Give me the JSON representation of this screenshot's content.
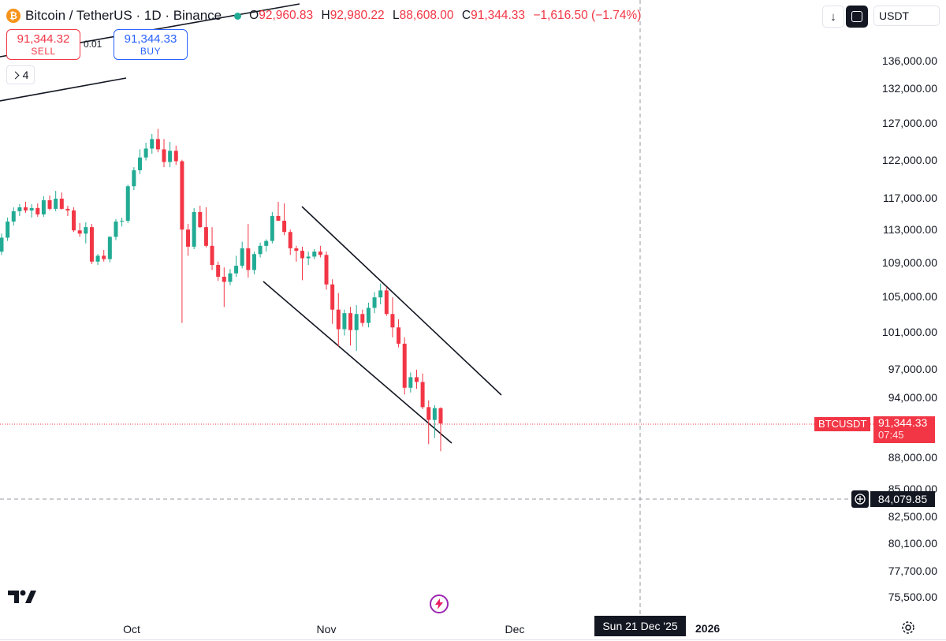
{
  "header": {
    "symbol": "Bitcoin / TetherUS · 1D · Binance",
    "coin_icon": "bitcoin-icon",
    "o_label": "O",
    "o_value": "92,960.83",
    "h_label": "H",
    "h_value": "92,980.22",
    "l_label": "L",
    "l_value": "88,608.00",
    "c_label": "C",
    "c_value": "91,344.33",
    "change": "−1,616.50 (−1.74%)"
  },
  "trade": {
    "sell_price": "91,344.32",
    "sell_label": "SELL",
    "spread": "0.01",
    "buy_price": "91,344.33",
    "buy_label": "BUY"
  },
  "indicator_count": "4",
  "toolbar": {
    "download_icon": "arrow-down-icon",
    "fullscreen_icon": "fullscreen-icon",
    "currency": "USDT"
  },
  "y_axis": {
    "ticks": [
      "136,000.00",
      "132,000.00",
      "127,000.00",
      "122,000.00",
      "117,000.00",
      "113,000.00",
      "109,000.00",
      "105,000.00",
      "101,000.00",
      "97,000.00",
      "94,000.00",
      "88,000.00",
      "85,000.00",
      "82,500.00",
      "80,100.00",
      "77,700.00",
      "75,500.00"
    ]
  },
  "x_axis": {
    "ticks": [
      "Oct",
      "Nov",
      "Dec"
    ],
    "year": "2026",
    "crosshair_date": "Sun 21 Dec '25"
  },
  "price_line": {
    "symbol": "BTCUSDT",
    "price": "91,344.33",
    "countdown": "07:45"
  },
  "crosshair": {
    "price": "84,079.85"
  },
  "colors": {
    "up": "#22ab94",
    "down": "#f23645",
    "line": "#131722"
  },
  "chart_data": {
    "type": "candlestick",
    "log_scale": true,
    "last_price": 91344.33,
    "crosshair_price": 84079.85,
    "candles": [
      {
        "o": 110300,
        "h": 112500,
        "l": 109900,
        "c": 112000
      },
      {
        "o": 112000,
        "h": 114500,
        "l": 111600,
        "c": 114000
      },
      {
        "o": 114000,
        "h": 115800,
        "l": 113500,
        "c": 115300
      },
      {
        "o": 115300,
        "h": 116200,
        "l": 114700,
        "c": 115800
      },
      {
        "o": 115800,
        "h": 116500,
        "l": 115100,
        "c": 115400
      },
      {
        "o": 115400,
        "h": 116200,
        "l": 114500,
        "c": 115700
      },
      {
        "o": 115700,
        "h": 116300,
        "l": 114600,
        "c": 114900
      },
      {
        "o": 114900,
        "h": 117200,
        "l": 114600,
        "c": 116700
      },
      {
        "o": 116700,
        "h": 117300,
        "l": 115400,
        "c": 115600
      },
      {
        "o": 115600,
        "h": 117900,
        "l": 115300,
        "c": 116900
      },
      {
        "o": 116900,
        "h": 117700,
        "l": 115500,
        "c": 115600
      },
      {
        "o": 115600,
        "h": 116000,
        "l": 114700,
        "c": 115400
      },
      {
        "o": 115400,
        "h": 115800,
        "l": 112700,
        "c": 112900
      },
      {
        "o": 112900,
        "h": 113800,
        "l": 112100,
        "c": 112500
      },
      {
        "o": 112500,
        "h": 113900,
        "l": 111300,
        "c": 113300
      },
      {
        "o": 113300,
        "h": 113700,
        "l": 108800,
        "c": 109100
      },
      {
        "o": 109100,
        "h": 110000,
        "l": 108700,
        "c": 109800
      },
      {
        "o": 109800,
        "h": 110500,
        "l": 109100,
        "c": 109400
      },
      {
        "o": 109400,
        "h": 112200,
        "l": 109000,
        "c": 112100
      },
      {
        "o": 112100,
        "h": 114300,
        "l": 111700,
        "c": 114000
      },
      {
        "o": 114000,
        "h": 114500,
        "l": 113400,
        "c": 114100
      },
      {
        "o": 114100,
        "h": 118700,
        "l": 113800,
        "c": 118500
      },
      {
        "o": 118500,
        "h": 121000,
        "l": 118000,
        "c": 120600
      },
      {
        "o": 120600,
        "h": 123400,
        "l": 120100,
        "c": 122300
      },
      {
        "o": 122300,
        "h": 124300,
        "l": 121900,
        "c": 123500
      },
      {
        "o": 123500,
        "h": 125500,
        "l": 122800,
        "c": 124800
      },
      {
        "o": 124800,
        "h": 126200,
        "l": 123000,
        "c": 123400
      },
      {
        "o": 123400,
        "h": 124800,
        "l": 121000,
        "c": 121700
      },
      {
        "o": 121700,
        "h": 124400,
        "l": 121000,
        "c": 123200
      },
      {
        "o": 123200,
        "h": 123900,
        "l": 121300,
        "c": 121800
      },
      {
        "o": 121800,
        "h": 122000,
        "l": 102000,
        "c": 113000
      },
      {
        "o": 113000,
        "h": 113700,
        "l": 109800,
        "c": 110900
      },
      {
        "o": 110900,
        "h": 115700,
        "l": 110600,
        "c": 115200
      },
      {
        "o": 115200,
        "h": 116000,
        "l": 113200,
        "c": 113300
      },
      {
        "o": 113300,
        "h": 115800,
        "l": 110800,
        "c": 111000
      },
      {
        "o": 111000,
        "h": 113300,
        "l": 108100,
        "c": 108700
      },
      {
        "o": 108700,
        "h": 109100,
        "l": 106800,
        "c": 107300
      },
      {
        "o": 107300,
        "h": 108400,
        "l": 103800,
        "c": 106700
      },
      {
        "o": 106700,
        "h": 108200,
        "l": 106300,
        "c": 107700
      },
      {
        "o": 107700,
        "h": 109800,
        "l": 107300,
        "c": 108600
      },
      {
        "o": 108600,
        "h": 111500,
        "l": 108300,
        "c": 110700
      },
      {
        "o": 110700,
        "h": 113700,
        "l": 107200,
        "c": 108100
      },
      {
        "o": 108100,
        "h": 110300,
        "l": 107600,
        "c": 110000
      },
      {
        "o": 110000,
        "h": 111400,
        "l": 109600,
        "c": 111000
      },
      {
        "o": 111000,
        "h": 111800,
        "l": 110300,
        "c": 111600
      },
      {
        "o": 111600,
        "h": 115200,
        "l": 111300,
        "c": 114700
      },
      {
        "o": 114700,
        "h": 116500,
        "l": 114300,
        "c": 114100
      },
      {
        "o": 114100,
        "h": 116300,
        "l": 112300,
        "c": 112700
      },
      {
        "o": 112700,
        "h": 113000,
        "l": 109900,
        "c": 110700
      },
      {
        "o": 110700,
        "h": 111000,
        "l": 109100,
        "c": 110400
      },
      {
        "o": 110400,
        "h": 110900,
        "l": 106900,
        "c": 109500
      },
      {
        "o": 109500,
        "h": 110300,
        "l": 108700,
        "c": 109700
      },
      {
        "o": 109700,
        "h": 110600,
        "l": 109400,
        "c": 110300
      },
      {
        "o": 110300,
        "h": 111000,
        "l": 109600,
        "c": 109900
      },
      {
        "o": 109900,
        "h": 110300,
        "l": 105800,
        "c": 106400
      },
      {
        "o": 106400,
        "h": 107000,
        "l": 101900,
        "c": 103500
      },
      {
        "o": 103500,
        "h": 105400,
        "l": 99400,
        "c": 101300
      },
      {
        "o": 101300,
        "h": 103500,
        "l": 100600,
        "c": 103100
      },
      {
        "o": 103100,
        "h": 103800,
        "l": 99500,
        "c": 101200
      },
      {
        "o": 101200,
        "h": 104000,
        "l": 98900,
        "c": 103000
      },
      {
        "o": 103000,
        "h": 103500,
        "l": 101600,
        "c": 102000
      },
      {
        "o": 102000,
        "h": 104300,
        "l": 101500,
        "c": 103700
      },
      {
        "o": 103700,
        "h": 105500,
        "l": 103100,
        "c": 104900
      },
      {
        "o": 104900,
        "h": 106500,
        "l": 104100,
        "c": 105700
      },
      {
        "o": 105700,
        "h": 106100,
        "l": 102800,
        "c": 103000
      },
      {
        "o": 103000,
        "h": 104900,
        "l": 100400,
        "c": 101500
      },
      {
        "o": 101500,
        "h": 102400,
        "l": 99300,
        "c": 99700
      },
      {
        "o": 99700,
        "h": 100400,
        "l": 94300,
        "c": 95000
      },
      {
        "o": 95000,
        "h": 96600,
        "l": 94500,
        "c": 96100
      },
      {
        "o": 96100,
        "h": 96900,
        "l": 94900,
        "c": 95600
      },
      {
        "o": 95600,
        "h": 96500,
        "l": 92800,
        "c": 93000
      },
      {
        "o": 93000,
        "h": 93700,
        "l": 89300,
        "c": 91700
      },
      {
        "o": 91700,
        "h": 93200,
        "l": 89900,
        "c": 92900
      },
      {
        "o": 92900,
        "h": 92980,
        "l": 88608,
        "c": 91344
      }
    ]
  }
}
